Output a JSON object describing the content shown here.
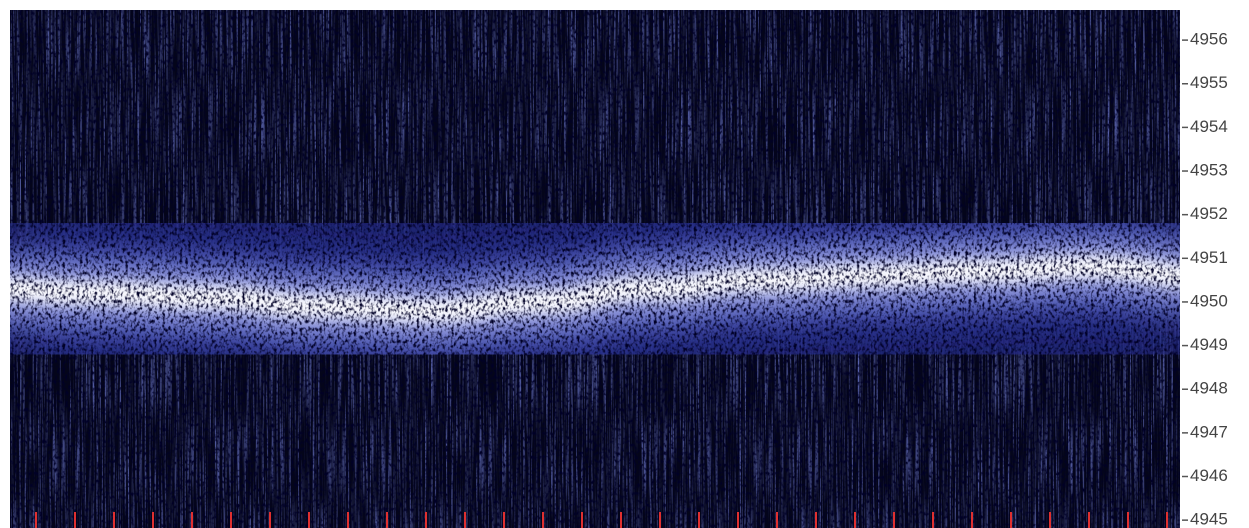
{
  "chart_data": {
    "type": "spectrogram",
    "values": [
      4950.3,
      4950.2,
      4950.1,
      4949.9,
      4949.8,
      4950.0,
      4950.3,
      4950.5,
      4950.6,
      4950.7,
      4950.8,
      4950.6
    ],
    "ylim": [
      4944.82,
      4956.69
    ],
    "yticks": [
      4945,
      4946,
      4947,
      4948,
      4949,
      4950,
      4951,
      4952,
      4953,
      4954,
      4955,
      4956
    ]
  }
}
